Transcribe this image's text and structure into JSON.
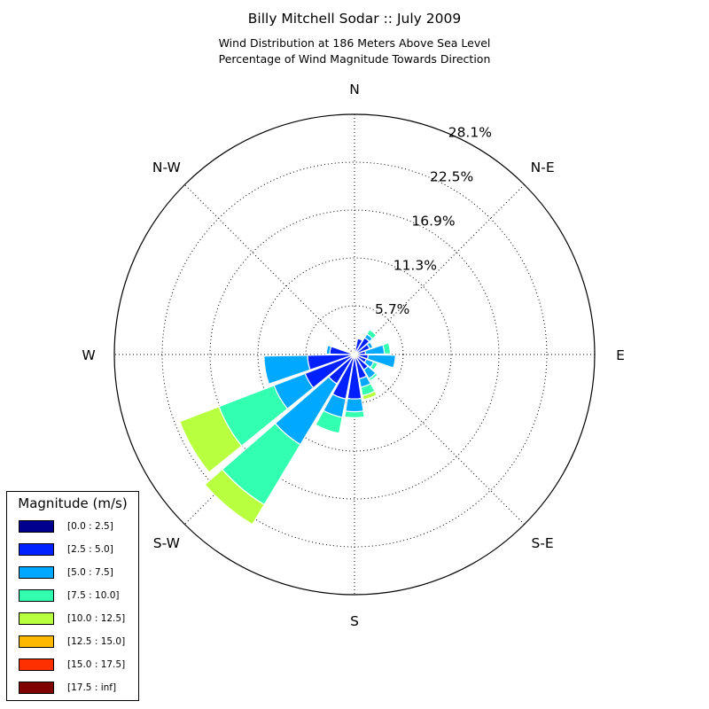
{
  "title": "Billy Mitchell Sodar :: July 2009",
  "subtitle_1": "Wind Distribution at 186 Meters Above Sea Level",
  "subtitle_2": "Percentage of Wind Magnitude Towards Direction",
  "chart_data": {
    "type": "windrose",
    "title": "Billy Mitchell Sodar :: July 2009",
    "subtitle": "Wind Distribution at 186 Meters Above Sea Level / Percentage of Wind Magnitude Towards Direction",
    "direction_labels": [
      "N",
      "N-E",
      "E",
      "S-E",
      "S",
      "S-W",
      "W",
      "N-W"
    ],
    "radial_ticks": [
      "5.7%",
      "11.3%",
      "16.9%",
      "22.5%",
      "28.1%"
    ],
    "radial_tick_values": [
      5.7,
      11.3,
      16.9,
      22.5,
      28.1
    ],
    "rmax": 28.1,
    "grid": true,
    "legend_title": "Magnitude (m/s)",
    "legend_position": "bottom-left",
    "bins": [
      {
        "label": "[0.0 : 2.5]",
        "color": "#00008f"
      },
      {
        "label": "[2.5 : 5.0]",
        "color": "#0020ff"
      },
      {
        "label": "[5.0 : 7.5]",
        "color": "#00a8ff"
      },
      {
        "label": "[7.5 : 10.0]",
        "color": "#33ffb0"
      },
      {
        "label": "[10.0 : 12.5]",
        "color": "#b8ff40"
      },
      {
        "label": "[12.5 : 15.0]",
        "color": "#ffb800"
      },
      {
        "label": "[15.0 : 17.5]",
        "color": "#ff3000"
      },
      {
        "label": "[17.5 : inf]",
        "color": "#800000"
      }
    ],
    "sector_width_deg": 20,
    "sectors": [
      {
        "direction_deg": 0,
        "cumulative": [
          0.2
        ]
      },
      {
        "direction_deg": 20,
        "cumulative": [
          0.3,
          1.9
        ]
      },
      {
        "direction_deg": 40,
        "cumulative": [
          0.2,
          2.3,
          2.8,
          3.4
        ]
      },
      {
        "direction_deg": 60,
        "cumulative": [
          0.3,
          1.9,
          2.3
        ]
      },
      {
        "direction_deg": 80,
        "cumulative": [
          0.3,
          1.3,
          3.5,
          4.2
        ]
      },
      {
        "direction_deg": 100,
        "cumulative": [
          0.2,
          1.6,
          4.8
        ]
      },
      {
        "direction_deg": 120,
        "cumulative": [
          0.2,
          1.5,
          2.4,
          2.9
        ]
      },
      {
        "direction_deg": 140,
        "cumulative": [
          0.2,
          2.1,
          3.3,
          3.6
        ]
      },
      {
        "direction_deg": 160,
        "cumulative": [
          0.2,
          2.9,
          3.9,
          4.9,
          5.4
        ]
      },
      {
        "direction_deg": 180,
        "cumulative": [
          0.2,
          5.2,
          6.7,
          7.4
        ]
      },
      {
        "direction_deg": 200,
        "cumulative": [
          0.2,
          5.3,
          7.5,
          9.4
        ]
      },
      {
        "direction_deg": 220,
        "cumulative": [
          0.2,
          4.0,
          12.3,
          20.5,
          23.2
        ]
      },
      {
        "direction_deg": 240,
        "cumulative": [
          0.2,
          6.2,
          10.1,
          17.0,
          21.9
        ]
      },
      {
        "direction_deg": 260,
        "cumulative": [
          0.2,
          5.5,
          10.6
        ]
      },
      {
        "direction_deg": 280,
        "cumulative": [
          0.2,
          2.9,
          3.3
        ]
      },
      {
        "direction_deg": 300,
        "cumulative": [
          0.2
        ]
      },
      {
        "direction_deg": 320,
        "cumulative": [
          0.2
        ]
      },
      {
        "direction_deg": 340,
        "cumulative": [
          0.2
        ]
      }
    ]
  }
}
